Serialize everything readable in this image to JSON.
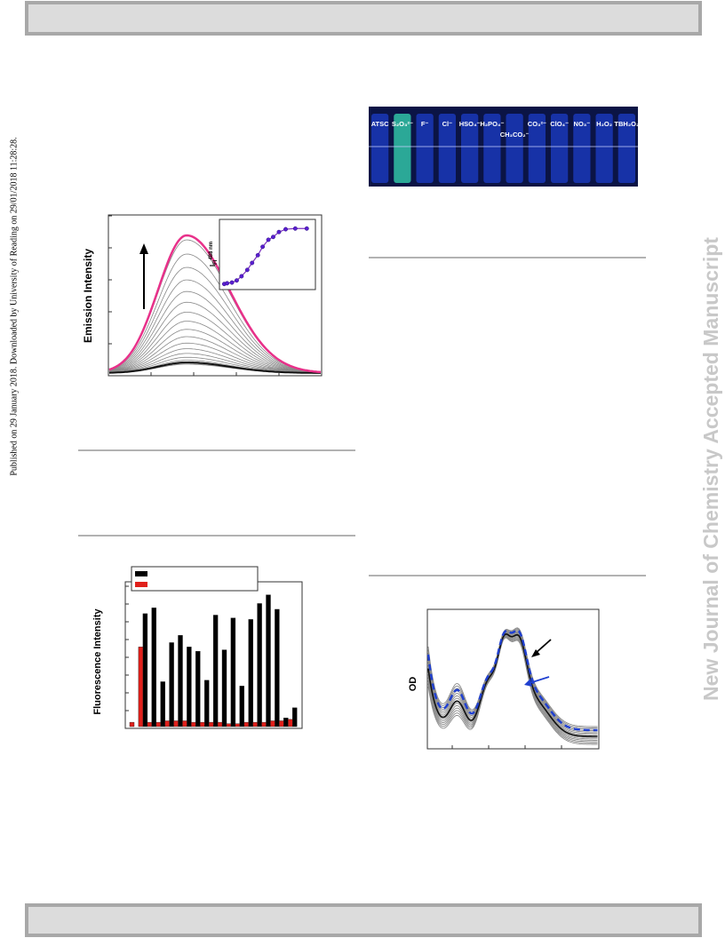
{
  "margin_note": "Published on 29 January 2018. Downloaded by University of Reading on 29/01/2018 11:28:28.",
  "watermark": "New Journal of Chemistry Accepted Manuscript",
  "vial_labels": [
    "ATSC",
    "S₂O₃²⁻",
    "F⁻",
    "Cl⁻",
    "HSO₄⁻",
    "H₂PO₄⁻",
    "CH₃CO₂⁻",
    "CO₃²⁻",
    "ClO₄⁻",
    "NO₃⁻",
    "H₂O₂",
    "TBH₂O₂"
  ],
  "emission_ylabel": "Emission Intensity",
  "od_ylabel": "OD",
  "chart_data": [
    {
      "type": "bar",
      "ylabel": "Fluorescence Intensity",
      "ylim": [
        0,
        100
      ],
      "series": [
        {
          "color": "#000000",
          "values": [
            0,
            78,
            82,
            31,
            58,
            63,
            55,
            52,
            32,
            77,
            53,
            75,
            28,
            74,
            85,
            91,
            81,
            6,
            13
          ]
        },
        {
          "color": "#e0201b",
          "values": [
            3,
            55,
            3,
            3,
            4,
            4,
            4,
            3,
            3,
            3,
            3,
            2,
            2,
            3,
            3,
            3,
            4,
            4,
            5
          ]
        }
      ]
    },
    {
      "type": "line",
      "ylabel": {
        "main": "I",
        "sub": "FI",
        "sup": "488 nm"
      },
      "color": "#7b2fbf",
      "xlim": [
        0,
        100
      ],
      "ylim": [
        0,
        100
      ],
      "x": [
        5,
        8,
        13,
        18,
        23,
        29,
        34,
        40,
        45,
        51,
        56,
        62,
        69,
        79,
        91
      ],
      "values": [
        8,
        9,
        10,
        13,
        19,
        28,
        38,
        49,
        61,
        71,
        75,
        82,
        86,
        87,
        87
      ]
    }
  ]
}
